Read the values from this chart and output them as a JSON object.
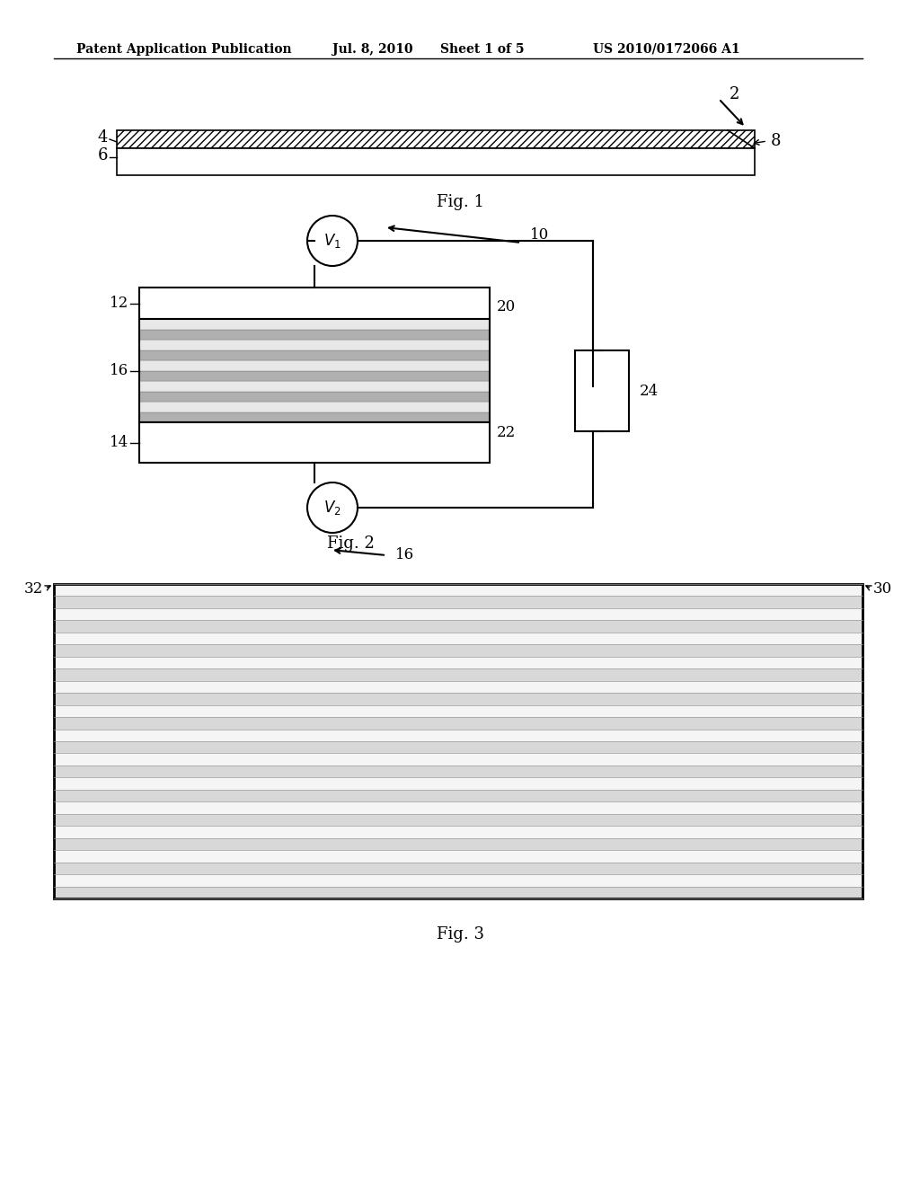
{
  "bg_color": "#ffffff",
  "header_text": "Patent Application Publication",
  "header_date": "Jul. 8, 2010",
  "header_sheet": "Sheet 1 of 5",
  "header_patent": "US 2010/0172066 A1",
  "fig1_label": "Fig. 1",
  "fig2_label": "Fig. 2",
  "fig3_label": "Fig. 3",
  "hatch_color": "#aaaaaa",
  "dark_gray": "#555555",
  "light_gray": "#cccccc",
  "mid_gray": "#888888",
  "black": "#000000"
}
